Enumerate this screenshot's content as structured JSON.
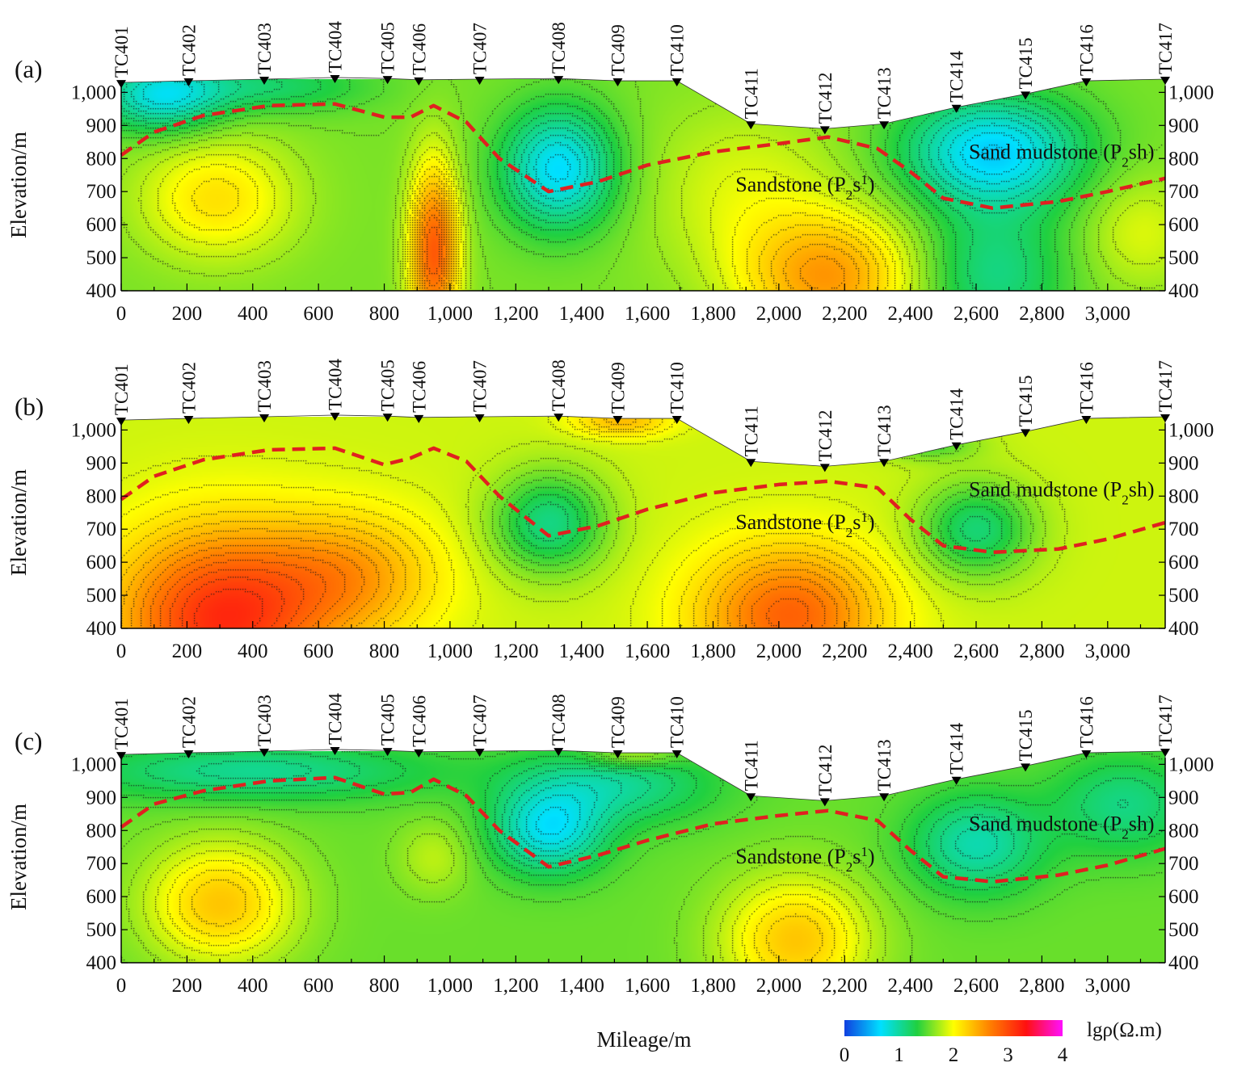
{
  "chart_data": {
    "type": "heatmap",
    "title": "",
    "xlabel": "Mileage/m",
    "ylabel": "Elevation/m",
    "xlim": [
      0,
      3175
    ],
    "ylim": [
      400,
      1040
    ],
    "x_ticks": [
      "0",
      "200",
      "400",
      "600",
      "800",
      "1,000",
      "1,200",
      "1,400",
      "1,600",
      "1,800",
      "2,000",
      "2,200",
      "2,400",
      "2,600",
      "2,800",
      "3,000"
    ],
    "x_tick_values": [
      0,
      200,
      400,
      600,
      800,
      1000,
      1200,
      1400,
      1600,
      1800,
      2000,
      2200,
      2400,
      2600,
      2800,
      3000
    ],
    "y_ticks": [
      "400",
      "500",
      "600",
      "700",
      "800",
      "900",
      "1,000"
    ],
    "y_tick_values": [
      400,
      500,
      600,
      700,
      800,
      900,
      1000
    ],
    "stations": [
      {
        "name": "TC401",
        "x": 0,
        "elev": 1030
      },
      {
        "name": "TC402",
        "x": 205,
        "elev": 1035
      },
      {
        "name": "TC403",
        "x": 435,
        "elev": 1040
      },
      {
        "name": "TC404",
        "x": 650,
        "elev": 1045
      },
      {
        "name": "TC405",
        "x": 810,
        "elev": 1042
      },
      {
        "name": "TC406",
        "x": 905,
        "elev": 1038
      },
      {
        "name": "TC407",
        "x": 1090,
        "elev": 1040
      },
      {
        "name": "TC408",
        "x": 1330,
        "elev": 1042
      },
      {
        "name": "TC409",
        "x": 1510,
        "elev": 1035
      },
      {
        "name": "TC410",
        "x": 1690,
        "elev": 1035
      },
      {
        "name": "TC411",
        "x": 1915,
        "elev": 905
      },
      {
        "name": "TC412",
        "x": 2140,
        "elev": 890
      },
      {
        "name": "TC413",
        "x": 2320,
        "elev": 905
      },
      {
        "name": "TC414",
        "x": 2540,
        "elev": 955
      },
      {
        "name": "TC415",
        "x": 2750,
        "elev": 995
      },
      {
        "name": "TC416",
        "x": 2935,
        "elev": 1035
      },
      {
        "name": "TC417",
        "x": 3175,
        "elev": 1040
      }
    ],
    "panels": [
      {
        "label": "(a)",
        "formation_upper": "Sand mudstone (P",
        "formation_upper_sub": "2",
        "formation_upper_end": "sh)",
        "formation_lower": "Sandstone (P",
        "formation_lower_sub": "2",
        "formation_lower_end": "s",
        "formation_lower_sup": "1",
        "formation_lower_close": ")",
        "boundary": [
          [
            0,
            810
          ],
          [
            100,
            880
          ],
          [
            250,
            930
          ],
          [
            450,
            960
          ],
          [
            650,
            965
          ],
          [
            800,
            925
          ],
          [
            880,
            925
          ],
          [
            950,
            960
          ],
          [
            1050,
            910
          ],
          [
            1150,
            800
          ],
          [
            1300,
            700
          ],
          [
            1450,
            730
          ],
          [
            1600,
            780
          ],
          [
            1800,
            820
          ],
          [
            2000,
            845
          ],
          [
            2150,
            865
          ],
          [
            2300,
            830
          ],
          [
            2400,
            760
          ],
          [
            2500,
            680
          ],
          [
            2650,
            650
          ],
          [
            2850,
            670
          ],
          [
            3000,
            700
          ],
          [
            3175,
            740
          ]
        ],
        "anomalies": [
          {
            "x": 950,
            "y": 520,
            "sx": 75,
            "sy": 260,
            "v": 1.3
          },
          {
            "x": 290,
            "y": 680,
            "sx": 230,
            "sy": 180,
            "v": 0.55
          },
          {
            "x": 2150,
            "y": 440,
            "sx": 260,
            "sy": 190,
            "v": 0.9
          },
          {
            "x": 1900,
            "y": 700,
            "sx": 300,
            "sy": 260,
            "v": 0.3
          },
          {
            "x": 1330,
            "y": 770,
            "sx": 170,
            "sy": 180,
            "v": -0.95
          },
          {
            "x": 2650,
            "y": 820,
            "sx": 270,
            "sy": 170,
            "v": -1.0
          },
          {
            "x": 120,
            "y": 990,
            "sx": 190,
            "sy": 110,
            "v": -0.8
          },
          {
            "x": 450,
            "y": 1020,
            "sx": 300,
            "sy": 80,
            "v": -0.4
          },
          {
            "x": 2650,
            "y": 450,
            "sx": 220,
            "sy": 200,
            "v": -0.5
          },
          {
            "x": 3100,
            "y": 580,
            "sx": 170,
            "sy": 170,
            "v": 0.3
          }
        ],
        "base": 1.6
      },
      {
        "label": "(b)",
        "formation_upper": "Sand mudstone (P",
        "formation_upper_sub": "2",
        "formation_upper_end": "sh)",
        "formation_lower": "Sandstone (P",
        "formation_lower_sub": "2",
        "formation_lower_end": "s",
        "formation_lower_sup": "1",
        "formation_lower_close": ")",
        "boundary": [
          [
            0,
            790
          ],
          [
            100,
            860
          ],
          [
            250,
            910
          ],
          [
            450,
            940
          ],
          [
            650,
            945
          ],
          [
            800,
            895
          ],
          [
            880,
            915
          ],
          [
            950,
            945
          ],
          [
            1050,
            905
          ],
          [
            1150,
            800
          ],
          [
            1300,
            680
          ],
          [
            1450,
            710
          ],
          [
            1600,
            760
          ],
          [
            1800,
            810
          ],
          [
            2000,
            835
          ],
          [
            2150,
            845
          ],
          [
            2300,
            825
          ],
          [
            2400,
            730
          ],
          [
            2500,
            650
          ],
          [
            2650,
            630
          ],
          [
            2850,
            640
          ],
          [
            3000,
            670
          ],
          [
            3175,
            720
          ]
        ],
        "anomalies": [
          {
            "x": 300,
            "y": 430,
            "sx": 320,
            "sy": 270,
            "v": 1.3
          },
          {
            "x": 700,
            "y": 560,
            "sx": 270,
            "sy": 190,
            "v": 0.6
          },
          {
            "x": 2030,
            "y": 440,
            "sx": 280,
            "sy": 210,
            "v": 1.0
          },
          {
            "x": 1300,
            "y": 720,
            "sx": 170,
            "sy": 150,
            "v": -0.75
          },
          {
            "x": 2600,
            "y": 700,
            "sx": 170,
            "sy": 140,
            "v": -0.7
          },
          {
            "x": 1520,
            "y": 1030,
            "sx": 150,
            "sy": 50,
            "v": 0.5
          },
          {
            "x": 2450,
            "y": 960,
            "sx": 150,
            "sy": 50,
            "v": -0.4
          }
        ],
        "base": 1.85
      },
      {
        "label": "(c)",
        "formation_upper": "Sand mudstone (P",
        "formation_upper_sub": "2",
        "formation_upper_end": "sh)",
        "formation_lower": "Sandstone (P",
        "formation_lower_sub": "2",
        "formation_lower_end": "s",
        "formation_lower_sup": "1",
        "formation_lower_close": ")",
        "boundary": [
          [
            0,
            810
          ],
          [
            100,
            880
          ],
          [
            250,
            920
          ],
          [
            450,
            950
          ],
          [
            650,
            960
          ],
          [
            800,
            910
          ],
          [
            880,
            915
          ],
          [
            950,
            955
          ],
          [
            1050,
            905
          ],
          [
            1150,
            800
          ],
          [
            1300,
            690
          ],
          [
            1450,
            725
          ],
          [
            1600,
            770
          ],
          [
            1800,
            820
          ],
          [
            2000,
            845
          ],
          [
            2150,
            860
          ],
          [
            2300,
            830
          ],
          [
            2400,
            740
          ],
          [
            2500,
            660
          ],
          [
            2650,
            645
          ],
          [
            2850,
            665
          ],
          [
            3000,
            695
          ],
          [
            3175,
            745
          ]
        ],
        "anomalies": [
          {
            "x": 300,
            "y": 580,
            "sx": 220,
            "sy": 180,
            "v": 0.75
          },
          {
            "x": 2050,
            "y": 470,
            "sx": 220,
            "sy": 190,
            "v": 0.75
          },
          {
            "x": 950,
            "y": 720,
            "sx": 110,
            "sy": 110,
            "v": 0.25
          },
          {
            "x": 1300,
            "y": 800,
            "sx": 170,
            "sy": 130,
            "v": -0.8
          },
          {
            "x": 2600,
            "y": 760,
            "sx": 200,
            "sy": 150,
            "v": -0.6
          },
          {
            "x": 400,
            "y": 980,
            "sx": 550,
            "sy": 90,
            "v": -0.5
          },
          {
            "x": 1500,
            "y": 940,
            "sx": 300,
            "sy": 120,
            "v": -0.5
          },
          {
            "x": 3050,
            "y": 880,
            "sx": 220,
            "sy": 150,
            "v": -0.45
          },
          {
            "x": 1550,
            "y": 1030,
            "sx": 140,
            "sy": 40,
            "v": 0.4
          }
        ],
        "base": 1.55
      }
    ],
    "colorbar": {
      "label": "lgρ(Ω.m)",
      "ticks": [
        "0",
        "1",
        "2",
        "3",
        "4"
      ],
      "min": 0,
      "max": 4,
      "colors": [
        "#1040e0",
        "#00e0ff",
        "#20d040",
        "#ffff00",
        "#ff8000",
        "#ff1010",
        "#ff10ff"
      ]
    },
    "legend_placement": "bottom-right"
  }
}
